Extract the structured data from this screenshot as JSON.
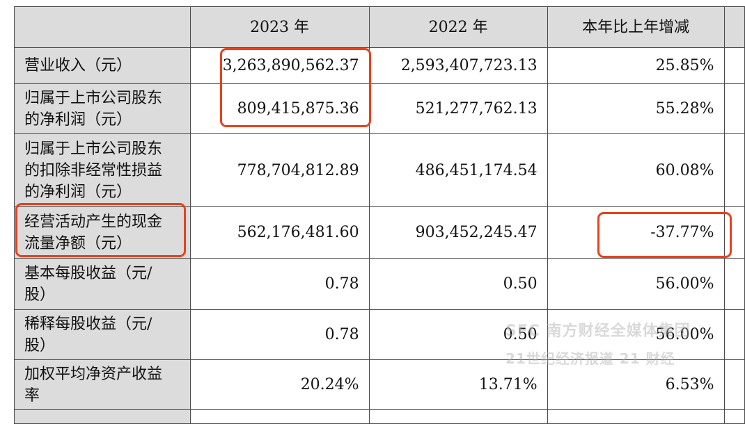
{
  "headers": [
    "",
    "2023 年",
    "2022 年",
    "本年比上年增减"
  ],
  "rows": [
    {
      "label": [
        "营业收入（元）"
      ],
      "y2023": "3,263,890,562.37",
      "y2022": "2,593,407,723.13",
      "change": "25.85%"
    },
    {
      "label": [
        "归属于上市公司股东",
        "的净利润（元）"
      ],
      "y2023": "809,415,875.36",
      "y2022": "521,277,762.13",
      "change": "55.28%"
    },
    {
      "label": [
        "归属于上市公司股东",
        "的扣除非经常性损益",
        "的净利润（元）"
      ],
      "y2023": "778,704,812.89",
      "y2022": "486,451,174.54",
      "change": "60.08%"
    },
    {
      "label": [
        "经营活动产生的现金",
        "流量净额（元）"
      ],
      "y2023": "562,176,481.60",
      "y2022": "903,452,245.47",
      "change": "-37.77%"
    },
    {
      "label": [
        "基本每股收益（元/",
        "股）"
      ],
      "y2023": "0.78",
      "y2022": "0.50",
      "change": "56.00%"
    },
    {
      "label": [
        "稀释每股收益（元/",
        "股）"
      ],
      "y2023": "0.78",
      "y2022": "0.50",
      "change": "56.00%"
    },
    {
      "label": [
        "加权平均净资产收益",
        "率"
      ],
      "y2023": "20.24%",
      "y2022": "13.71%",
      "change": "6.53%"
    }
  ],
  "watermark": {
    "line1": "SFC 南方财经全媒体集团",
    "line2": "21世纪经济报道 21 财经"
  },
  "colors": {
    "highlight": "#e8411c",
    "label_bg": "#dcdcdc",
    "border": "#4a4a4a"
  }
}
